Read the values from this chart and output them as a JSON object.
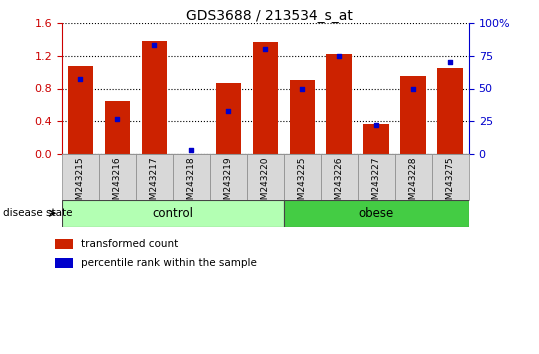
{
  "title": "GDS3688 / 213534_s_at",
  "samples": [
    "GSM243215",
    "GSM243216",
    "GSM243217",
    "GSM243218",
    "GSM243219",
    "GSM243220",
    "GSM243225",
    "GSM243226",
    "GSM243227",
    "GSM243228",
    "GSM243275"
  ],
  "red_values": [
    1.07,
    0.65,
    1.38,
    0.0,
    0.87,
    1.37,
    0.9,
    1.22,
    0.37,
    0.95,
    1.05
  ],
  "blue_values_pct": [
    57,
    27,
    83,
    3,
    33,
    80,
    50,
    75,
    22,
    50,
    70
  ],
  "groups": [
    {
      "label": "control",
      "start": 0,
      "end": 6,
      "color": "#b3ffb3"
    },
    {
      "label": "obese",
      "start": 6,
      "end": 11,
      "color": "#44cc44"
    }
  ],
  "left_axis_color": "#cc0000",
  "right_axis_color": "#0000cc",
  "left_ylim": [
    0,
    1.6
  ],
  "right_ylim": [
    0,
    100
  ],
  "left_yticks": [
    0,
    0.4,
    0.8,
    1.2,
    1.6
  ],
  "right_yticks": [
    0,
    25,
    50,
    75,
    100
  ],
  "right_yticklabels": [
    "0",
    "25",
    "50",
    "75",
    "100%"
  ],
  "bar_color": "#cc2200",
  "dot_color": "#0000cc",
  "bar_width": 0.7,
  "disease_state_label": "disease state",
  "legend_items": [
    {
      "color": "#cc2200",
      "label": "transformed count"
    },
    {
      "color": "#0000cc",
      "label": "percentile rank within the sample"
    }
  ],
  "tick_bg_color": "#d8d8d8",
  "tick_border_color": "#888888"
}
